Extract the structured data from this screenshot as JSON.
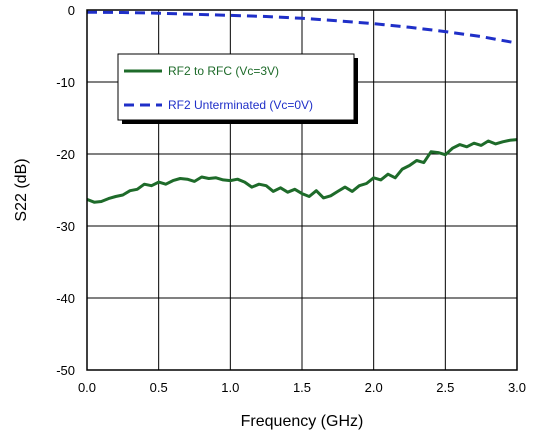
{
  "chart_data": {
    "type": "line",
    "title": "",
    "xlabel": "Frequency (GHz)",
    "ylabel": "S22 (dB)",
    "xlim": [
      0.0,
      3.0
    ],
    "ylim": [
      -50,
      0
    ],
    "grid": true,
    "legend_position": "upper-left, boxed",
    "x_ticks": [
      "0.0",
      "0.5",
      "1.0",
      "1.5",
      "2.0",
      "2.5",
      "3.0"
    ],
    "y_ticks": [
      "0",
      "-10",
      "-20",
      "-30",
      "-40",
      "-50"
    ],
    "series": [
      {
        "name": "RF2 to RFC (Vc=3V)",
        "color": "#1e6b2a",
        "style": "solid",
        "x": [
          0.0,
          0.05,
          0.1,
          0.15,
          0.2,
          0.25,
          0.3,
          0.35,
          0.4,
          0.45,
          0.5,
          0.55,
          0.6,
          0.65,
          0.7,
          0.75,
          0.8,
          0.85,
          0.9,
          0.95,
          1.0,
          1.05,
          1.1,
          1.15,
          1.2,
          1.25,
          1.3,
          1.35,
          1.4,
          1.45,
          1.5,
          1.55,
          1.6,
          1.65,
          1.7,
          1.75,
          1.8,
          1.85,
          1.9,
          1.95,
          2.0,
          2.05,
          2.1,
          2.15,
          2.2,
          2.25,
          2.3,
          2.35,
          2.4,
          2.45,
          2.5,
          2.55,
          2.6,
          2.65,
          2.7,
          2.75,
          2.8,
          2.85,
          2.9,
          2.95,
          3.0
        ],
        "y": [
          -26.3,
          -26.7,
          -26.6,
          -26.2,
          -25.9,
          -25.7,
          -25.1,
          -24.9,
          -24.2,
          -24.4,
          -23.9,
          -24.2,
          -23.7,
          -23.4,
          -23.5,
          -23.8,
          -23.2,
          -23.4,
          -23.3,
          -23.6,
          -23.7,
          -23.5,
          -23.9,
          -24.6,
          -24.2,
          -24.4,
          -25.2,
          -24.7,
          -25.3,
          -24.9,
          -25.5,
          -25.9,
          -25.1,
          -26.1,
          -25.8,
          -25.2,
          -24.6,
          -25.2,
          -24.4,
          -24.1,
          -23.3,
          -23.6,
          -22.8,
          -23.3,
          -22.1,
          -21.6,
          -20.9,
          -21.2,
          -19.7,
          -19.8,
          -20.1,
          -19.2,
          -18.7,
          -19.0,
          -18.5,
          -18.8,
          -18.2,
          -18.6,
          -18.3,
          -18.1,
          -18.0
        ]
      },
      {
        "name": "RF2 Unterminated (Vc=0V)",
        "color": "#1f2fc8",
        "style": "dashed",
        "x": [
          0.0,
          0.25,
          0.5,
          0.75,
          1.0,
          1.25,
          1.5,
          1.75,
          2.0,
          2.25,
          2.5,
          2.75,
          3.0
        ],
        "y": [
          -0.3,
          -0.35,
          -0.45,
          -0.6,
          -0.75,
          -0.9,
          -1.15,
          -1.5,
          -1.9,
          -2.4,
          -3.0,
          -3.7,
          -4.6
        ]
      }
    ]
  }
}
